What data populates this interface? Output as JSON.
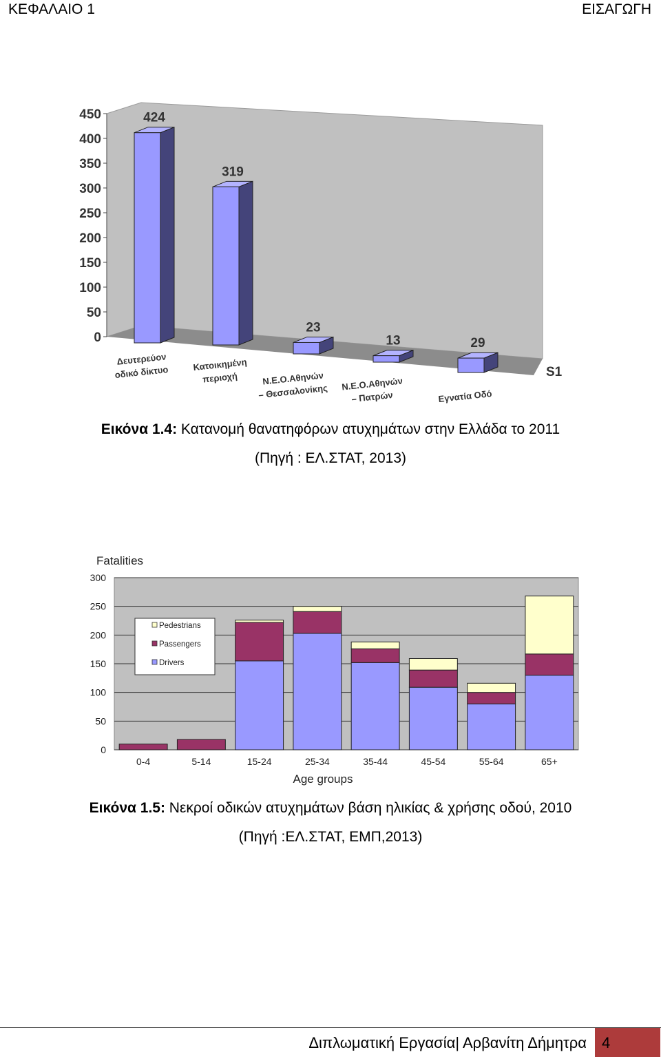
{
  "header": {
    "left": "ΚΕΦΑΛΑΙΟ 1",
    "right": "ΕΙΣΑΓΩΓΗ"
  },
  "figure1": {
    "caption_label": "Εικόνα 1.4:",
    "caption_text": " Κατανομή θανατηφόρων ατυχημάτων στην Ελλάδα το 2011",
    "caption_source": "(Πηγή : ΕΛ.ΣΤΑΤ, 2013)"
  },
  "figure2": {
    "caption_label": "Εικόνα 1.5:",
    "caption_text": " Νεκροί οδικών ατυχημάτων βάση ηλικίας & χρήσης οδού, 2010",
    "caption_source": "(Πηγή :ΕΛ.ΣΤΑΤ, ΕΜΠ,2013)"
  },
  "footer": {
    "text": "Διπλωματική Εργασία| Αρβανίτη Δήμητρα",
    "page": "4"
  },
  "colors": {
    "bar3d": "#9999ff",
    "bar3d_side": "#44447a",
    "pedestrians": "#ffffcc",
    "passengers": "#993366",
    "drivers": "#9999ff",
    "plot_bg": "#c0c0c0"
  },
  "chart_data": [
    {
      "type": "bar",
      "title": "",
      "series_label": "S1",
      "categories": [
        [
          "Δευτερεύον",
          "οδικό δίκτυο"
        ],
        [
          "Κατοικημένη",
          "περιοχή"
        ],
        [
          "Ν.Ε.Ο.Αθηνών",
          "– Θεσσαλονίκης"
        ],
        [
          "Ν.Ε.Ο.Αθηνών",
          "– Πατρών"
        ],
        [
          "Εγνατία Οδό"
        ]
      ],
      "values": [
        424,
        319,
        23,
        13,
        29
      ],
      "ylim": [
        0,
        450
      ],
      "yticks": [
        0,
        50,
        100,
        150,
        200,
        250,
        300,
        350,
        400,
        450
      ],
      "grid": false
    },
    {
      "type": "bar",
      "stacked": true,
      "ylabel": "Fatalities",
      "xlabel": "Age groups",
      "categories": [
        "0-4",
        "5-14",
        "15-24",
        "25-34",
        "35-44",
        "45-54",
        "55-64",
        "65+"
      ],
      "series": [
        {
          "name": "Drivers",
          "values": [
            0,
            0,
            155,
            203,
            152,
            109,
            80,
            130
          ]
        },
        {
          "name": "Passengers",
          "values": [
            10,
            18,
            67,
            38,
            24,
            30,
            20,
            37
          ]
        },
        {
          "name": "Pedestrians",
          "values": [
            0,
            0,
            4,
            9,
            12,
            20,
            16,
            101
          ]
        }
      ],
      "legend_order": [
        "Pedestrians",
        "Passengers",
        "Drivers"
      ],
      "legend_position": "top-left",
      "ylim": [
        0,
        300
      ],
      "yticks": [
        0,
        50,
        100,
        150,
        200,
        250,
        300
      ],
      "grid": true
    }
  ]
}
